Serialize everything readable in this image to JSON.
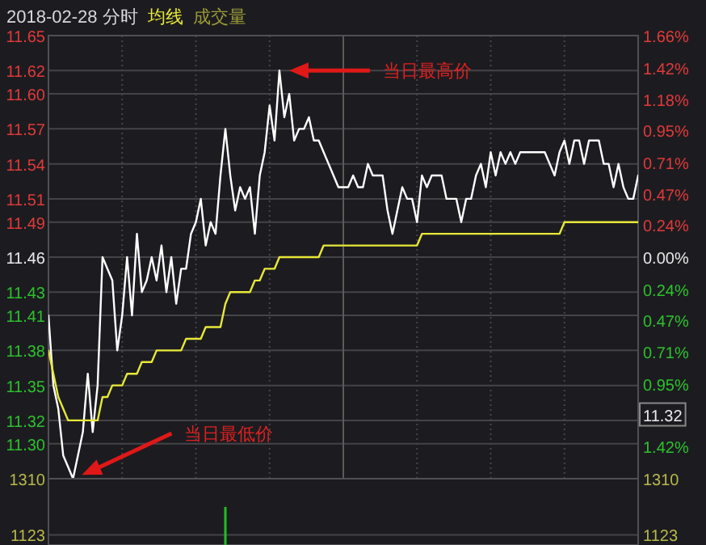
{
  "chart_data": [
    {
      "type": "line",
      "title": "2018-02-28 分时",
      "grid": true,
      "categories": [
        null,
        null,
        null,
        null,
        null,
        null,
        null,
        null,
        null,
        null,
        null,
        null,
        null,
        null,
        null,
        null,
        null,
        null,
        null,
        null,
        null,
        null,
        null,
        null,
        null,
        null,
        null,
        null,
        null,
        null,
        null,
        null,
        null,
        null,
        null,
        null,
        null,
        null,
        null,
        null,
        null,
        null,
        null,
        null,
        null,
        null,
        null,
        null,
        null,
        null,
        null,
        null,
        null,
        null,
        null,
        null,
        null,
        null,
        null,
        null,
        null,
        null,
        null,
        null,
        null,
        null,
        null,
        null,
        null,
        null,
        null,
        null,
        null,
        null,
        null,
        null,
        null,
        null,
        null,
        null,
        null,
        null,
        null,
        null,
        null,
        null,
        null,
        null,
        null,
        null,
        null,
        null,
        null,
        null,
        null,
        null,
        null,
        null,
        null,
        null,
        null,
        null,
        null,
        null,
        null,
        null,
        null,
        null,
        null,
        null,
        null,
        null,
        null,
        null,
        null,
        null,
        null,
        null,
        null,
        null,
        null
      ],
      "ylim": [
        11.27,
        11.65
      ],
      "yticks": [
        {
          "value": 11.65,
          "label": "11.65"
        },
        {
          "value": 11.62,
          "label": "11.62"
        },
        {
          "value": 11.6,
          "label": "11.60"
        },
        {
          "value": 11.57,
          "label": "11.57"
        },
        {
          "value": 11.54,
          "label": "11.54"
        },
        {
          "value": 11.51,
          "label": "11.51"
        },
        {
          "value": 11.49,
          "label": "11.49"
        },
        {
          "value": 11.46,
          "label": "11.46"
        },
        {
          "value": 11.43,
          "label": "11.43"
        },
        {
          "value": 11.41,
          "label": "11.41"
        },
        {
          "value": 11.38,
          "label": "11.38"
        },
        {
          "value": 11.35,
          "label": "11.35"
        },
        {
          "value": 11.32,
          "label": "11.32"
        },
        {
          "value": 11.3,
          "label": "11.30"
        }
      ],
      "y2lim": [
        -1.66,
        1.66
      ],
      "y2ticks": [
        {
          "value": 1.66,
          "label": "1.66%"
        },
        {
          "value": 1.42,
          "label": "1.42%"
        },
        {
          "value": 1.18,
          "label": "1.18%"
        },
        {
          "value": 0.95,
          "label": "0.95%"
        },
        {
          "value": 0.71,
          "label": "0.71%"
        },
        {
          "value": 0.47,
          "label": "0.47%"
        },
        {
          "value": 0.24,
          "label": "0.24%"
        },
        {
          "value": 0,
          "label": "0.00%"
        },
        {
          "value": -0.24,
          "label": "0.24%"
        },
        {
          "value": -0.47,
          "label": "0.47%"
        },
        {
          "value": -0.71,
          "label": "0.71%"
        },
        {
          "value": -0.95,
          "label": "0.95%"
        },
        {
          "value": -1.42,
          "label": "1.42%"
        }
      ],
      "subtitle": "成交量",
      "annotations": [
        "当日最高价",
        "当日最低价",
        "11.32"
      ],
      "series": [
        {
          "color": "#ffffff",
          "values": [
            11.41,
            11.35,
            11.33,
            11.29,
            11.28,
            11.27,
            11.29,
            11.31,
            11.36,
            11.31,
            11.35,
            11.46,
            11.45,
            11.44,
            11.38,
            11.41,
            11.46,
            11.41,
            11.48,
            11.43,
            11.44,
            11.46,
            11.44,
            11.47,
            11.43,
            11.46,
            11.42,
            11.45,
            11.45,
            11.48,
            11.49,
            11.51,
            11.47,
            11.49,
            11.48,
            11.53,
            11.57,
            11.53,
            11.5,
            11.52,
            11.51,
            11.52,
            11.48,
            11.53,
            11.55,
            11.59,
            11.56,
            11.62,
            11.58,
            11.6,
            11.56,
            11.57,
            11.57,
            11.58,
            11.56,
            11.56,
            11.55,
            11.54,
            11.53,
            11.52,
            11.52,
            11.52,
            11.53,
            11.52,
            11.52,
            11.54,
            11.53,
            11.53,
            11.53,
            11.5,
            11.48,
            11.5,
            11.52,
            11.51,
            11.51,
            11.49,
            11.53,
            11.52,
            11.53,
            11.53,
            11.53,
            11.51,
            11.51,
            11.51,
            11.49,
            11.51,
            11.51,
            11.53,
            11.54,
            11.52,
            11.55,
            11.53,
            11.55,
            11.54,
            11.55,
            11.54,
            11.55,
            11.55,
            11.55,
            11.55,
            11.55,
            11.55,
            11.54,
            11.53,
            11.55,
            11.56,
            11.54,
            11.56,
            11.56,
            11.54,
            11.56,
            11.56,
            11.56,
            11.54,
            11.54,
            11.52,
            11.54,
            11.52,
            11.51,
            11.51,
            11.53
          ]
        },
        {
          "name": "均线",
          "color": "#e8e838",
          "values": [
            11.38,
            11.36,
            11.34,
            11.33,
            11.32,
            11.32,
            11.32,
            11.32,
            11.32,
            11.32,
            11.32,
            11.34,
            11.34,
            11.35,
            11.35,
            11.35,
            11.36,
            11.36,
            11.36,
            11.37,
            11.37,
            11.37,
            11.38,
            11.38,
            11.38,
            11.38,
            11.38,
            11.38,
            11.39,
            11.39,
            11.39,
            11.39,
            11.4,
            11.4,
            11.4,
            11.4,
            11.42,
            11.43,
            11.43,
            11.43,
            11.43,
            11.43,
            11.44,
            11.44,
            11.45,
            11.45,
            11.45,
            11.46,
            11.46,
            11.46,
            11.46,
            11.46,
            11.46,
            11.46,
            11.46,
            11.46,
            11.47,
            11.47,
            11.47,
            11.47,
            11.47,
            11.47,
            11.47,
            11.47,
            11.47,
            11.47,
            11.47,
            11.47,
            11.47,
            11.47,
            11.47,
            11.47,
            11.47,
            11.47,
            11.47,
            11.47,
            11.48,
            11.48,
            11.48,
            11.48,
            11.48,
            11.48,
            11.48,
            11.48,
            11.48,
            11.48,
            11.48,
            11.48,
            11.48,
            11.48,
            11.48,
            11.48,
            11.48,
            11.48,
            11.48,
            11.48,
            11.48,
            11.48,
            11.48,
            11.48,
            11.48,
            11.48,
            11.48,
            11.48,
            11.48,
            11.49,
            11.49,
            11.49,
            11.49,
            11.49,
            11.49,
            11.49,
            11.49,
            11.49,
            11.49,
            11.49,
            11.49,
            11.49,
            11.49,
            11.49,
            11.49
          ]
        }
      ]
    },
    {
      "type": "bar",
      "grid": "y",
      "categories": [
        null,
        null,
        null,
        null,
        null,
        null,
        null,
        null,
        null,
        null,
        null,
        null,
        null,
        null,
        null,
        null,
        null,
        null,
        null,
        null,
        null,
        null,
        null,
        null,
        null,
        null,
        null,
        null,
        null,
        null,
        null,
        null,
        null,
        null,
        null,
        null,
        null,
        null,
        null,
        null,
        null,
        null,
        null,
        null,
        null,
        null,
        null,
        null,
        null,
        null,
        null,
        null,
        null,
        null,
        null,
        null,
        null,
        null,
        null,
        null,
        null,
        null,
        null,
        null,
        null,
        null,
        null,
        null,
        null,
        null,
        null,
        null,
        null,
        null,
        null,
        null,
        null,
        null,
        null,
        null,
        null,
        null,
        null,
        null,
        null,
        null,
        null,
        null,
        null,
        null,
        null,
        null,
        null,
        null,
        null,
        null,
        null,
        null,
        null,
        null,
        null,
        null,
        null,
        null,
        null,
        null,
        null,
        null,
        null,
        null,
        null,
        null,
        null,
        null,
        null,
        null,
        null,
        null,
        null,
        null,
        null
      ],
      "ylim": [
        1089,
        1310
      ],
      "yticks": [
        1310,
        1123
      ],
      "y2lim": [
        1089,
        1310
      ],
      "y2ticks": [
        1310,
        1123
      ],
      "series": [
        {
          "color": "#20c020",
          "values": [
            null,
            null,
            null,
            null,
            null,
            null,
            null,
            null,
            null,
            null,
            null,
            null,
            null,
            null,
            null,
            null,
            null,
            null,
            null,
            null,
            null,
            null,
            null,
            null,
            null,
            null,
            null,
            null,
            null,
            null,
            null,
            null,
            null,
            null,
            null,
            null,
            1216,
            null,
            null,
            null,
            null,
            null,
            null,
            null,
            null,
            null,
            null,
            null,
            null,
            null,
            null,
            null,
            null,
            null,
            null,
            null,
            null,
            null,
            null,
            null,
            null,
            null,
            null,
            null,
            null,
            null,
            null,
            null,
            null,
            null,
            null,
            null,
            null,
            null,
            null,
            null,
            null,
            null,
            null,
            null,
            null,
            null,
            null,
            null,
            null,
            null,
            null,
            null,
            null,
            null,
            null,
            null,
            null,
            null,
            null,
            null,
            null,
            null,
            null,
            null,
            null,
            null,
            null,
            null,
            null,
            null,
            null,
            null,
            null,
            null,
            null,
            null,
            null,
            null,
            null,
            null,
            null,
            null,
            null,
            null,
            null
          ]
        }
      ]
    }
  ]
}
